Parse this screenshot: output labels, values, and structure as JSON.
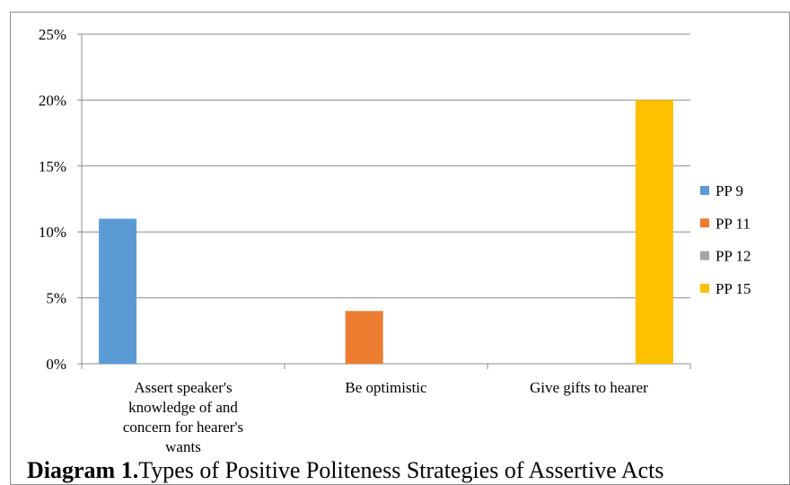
{
  "chart_data": {
    "type": "bar",
    "title": "",
    "xlabel": "",
    "ylabel": "",
    "categories": [
      [
        "Assert speaker's",
        "knowledge of and",
        "concern for hearer's",
        "wants"
      ],
      [
        "Be optimistic"
      ],
      [
        "Give gifts to hearer"
      ]
    ],
    "series": [
      {
        "name": "PP 9",
        "color": "#5b9bd5",
        "values": [
          11,
          0,
          0
        ]
      },
      {
        "name": "PP 11",
        "color": "#ed7d31",
        "values": [
          0,
          4,
          0
        ]
      },
      {
        "name": "PP 12",
        "color": "#a5a5a5",
        "values": [
          0,
          0,
          0
        ]
      },
      {
        "name": "PP 15",
        "color": "#ffc000",
        "values": [
          0,
          0,
          20
        ]
      }
    ],
    "yticks": [
      "0%",
      "5%",
      "10%",
      "15%",
      "20%",
      "25%"
    ],
    "ylim": [
      0,
      25
    ],
    "grid": true,
    "legend": "right"
  },
  "caption": {
    "bold": "Diagram 1.",
    "text": "Types of Positive Politeness Strategies of Assertive Acts"
  }
}
